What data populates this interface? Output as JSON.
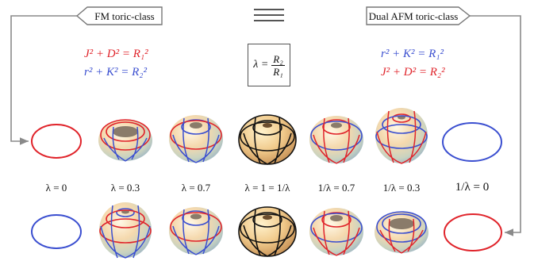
{
  "header": {
    "fm_label": "FM toric-class",
    "dual_label": "Dual AFM toric-class",
    "equiv_symbol": "≡"
  },
  "equations": {
    "left_red": "J² + D² = R₁²",
    "left_blue": "r² + K² = R₂²",
    "right_blue": "r² + K² = R₁²",
    "right_red": "J² + D² = R₂²"
  },
  "lambda_def": {
    "lhs": "λ =",
    "numerator": "R₂",
    "denominator": "R₁"
  },
  "lambda_labels": [
    "λ = 0",
    "λ = 0.3",
    "λ = 0.7",
    "λ = 1 = 1/λ",
    "1/λ = 0.7",
    "1/λ = 0.3",
    "1/λ = 0"
  ],
  "colors": {
    "red": "#e0242b",
    "blue": "#3b4fd0",
    "arrow": "#8a8a8a",
    "black": "#111111"
  }
}
